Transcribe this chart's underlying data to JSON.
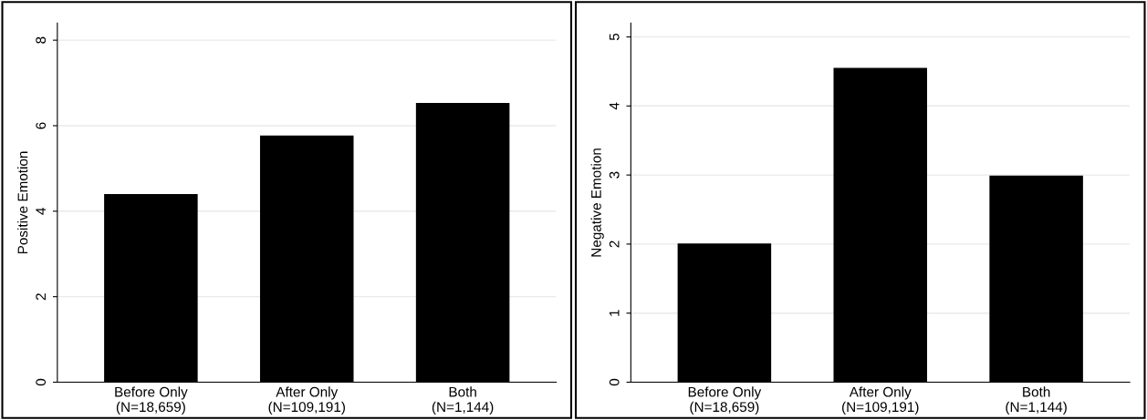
{
  "chart_data": [
    {
      "type": "bar",
      "ylabel": "Positive Emotion",
      "categories": [
        "Before Only\n(N=18,659)",
        "After Only\n(N=109,191)",
        "Both\n(N=1,144)"
      ],
      "values": [
        4.4,
        5.77,
        6.53
      ],
      "color": "#000000",
      "ylim": [
        0,
        8.4
      ],
      "yticks": [
        0,
        2,
        4,
        6,
        8
      ],
      "grid": "y"
    },
    {
      "type": "bar",
      "ylabel": "Negative Emotion",
      "categories": [
        "Before Only\n(N=18,659)",
        "After Only\n(N=109,191)",
        "Both\n(N=1,144)"
      ],
      "values": [
        2.01,
        4.55,
        2.99
      ],
      "color": "#000000",
      "ylim": [
        0,
        5.2
      ],
      "yticks": [
        0,
        1,
        2,
        3,
        4,
        5
      ],
      "grid": "y"
    }
  ]
}
